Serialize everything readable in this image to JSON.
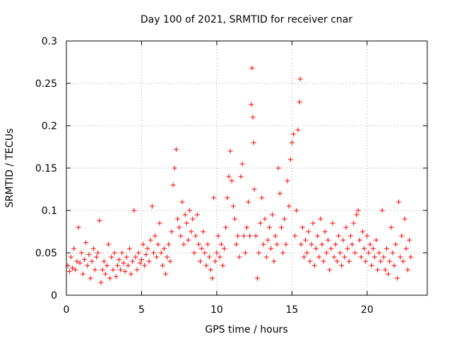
{
  "chart_data": {
    "type": "scatter",
    "title": "Day 100 of 2021, SRMTID for receiver cnar",
    "xlabel": "GPS time / hours",
    "ylabel": "SRMTID / TECUs",
    "xlim": [
      0,
      24
    ],
    "ylim": [
      0,
      0.3
    ],
    "xticks": [
      0,
      5,
      10,
      15,
      20
    ],
    "xtick_labels": [
      "0",
      "5",
      "10",
      "15",
      "20"
    ],
    "yticks": [
      0,
      0.05,
      0.1,
      0.15,
      0.2,
      0.25,
      0.3
    ],
    "ytick_labels": [
      "0",
      "0.05",
      "0.1",
      "0.15",
      "0.2",
      "0.25",
      "0.3"
    ],
    "grid": true,
    "marker": "plus",
    "marker_color": "#ff0000",
    "series": [
      {
        "name": "SRMTID",
        "points": [
          [
            0.1,
            0.035
          ],
          [
            0.2,
            0.028
          ],
          [
            0.3,
            0.045
          ],
          [
            0.4,
            0.032
          ],
          [
            0.5,
            0.055
          ],
          [
            0.6,
            0.03
          ],
          [
            0.7,
            0.04
          ],
          [
            0.8,
            0.08
          ],
          [
            0.9,
            0.038
          ],
          [
            1.0,
            0.05
          ],
          [
            1.1,
            0.025
          ],
          [
            1.2,
            0.042
          ],
          [
            1.3,
            0.062
          ],
          [
            1.4,
            0.035
          ],
          [
            1.5,
            0.048
          ],
          [
            1.6,
            0.02
          ],
          [
            1.7,
            0.04
          ],
          [
            1.8,
            0.055
          ],
          [
            1.9,
            0.03
          ],
          [
            2.0,
            0.045
          ],
          [
            2.1,
            0.05
          ],
          [
            2.2,
            0.088
          ],
          [
            2.3,
            0.015
          ],
          [
            2.4,
            0.03
          ],
          [
            2.5,
            0.04
          ],
          [
            2.6,
            0.025
          ],
          [
            2.7,
            0.035
          ],
          [
            2.8,
            0.06
          ],
          [
            2.9,
            0.02
          ],
          [
            3.0,
            0.045
          ],
          [
            3.1,
            0.03
          ],
          [
            3.2,
            0.05
          ],
          [
            3.3,
            0.022
          ],
          [
            3.4,
            0.035
          ],
          [
            3.5,
            0.042
          ],
          [
            3.6,
            0.03
          ],
          [
            3.7,
            0.05
          ],
          [
            3.8,
            0.038
          ],
          [
            3.9,
            0.028
          ],
          [
            4.0,
            0.045
          ],
          [
            4.1,
            0.035
          ],
          [
            4.2,
            0.055
          ],
          [
            4.3,
            0.025
          ],
          [
            4.4,
            0.04
          ],
          [
            4.5,
            0.1
          ],
          [
            4.6,
            0.045
          ],
          [
            4.7,
            0.03
          ],
          [
            4.8,
            0.05
          ],
          [
            4.9,
            0.038
          ],
          [
            5.0,
            0.042
          ],
          [
            5.1,
            0.06
          ],
          [
            5.2,
            0.035
          ],
          [
            5.3,
            0.048
          ],
          [
            5.4,
            0.055
          ],
          [
            5.5,
            0.04
          ],
          [
            5.6,
            0.065
          ],
          [
            5.7,
            0.105
          ],
          [
            5.8,
            0.05
          ],
          [
            5.9,
            0.07
          ],
          [
            6.0,
            0.045
          ],
          [
            6.1,
            0.06
          ],
          [
            6.2,
            0.085
          ],
          [
            6.3,
            0.05
          ],
          [
            6.4,
            0.035
          ],
          [
            6.5,
            0.055
          ],
          [
            6.6,
            0.025
          ],
          [
            6.7,
            0.045
          ],
          [
            6.8,
            0.06
          ],
          [
            6.9,
            0.04
          ],
          [
            7.0,
            0.075
          ],
          [
            7.1,
            0.13
          ],
          [
            7.2,
            0.15
          ],
          [
            7.3,
            0.172
          ],
          [
            7.4,
            0.09
          ],
          [
            7.5,
            0.08
          ],
          [
            7.6,
            0.07
          ],
          [
            7.7,
            0.11
          ],
          [
            7.8,
            0.06
          ],
          [
            7.9,
            0.095
          ],
          [
            8.0,
            0.085
          ],
          [
            8.1,
            0.065
          ],
          [
            8.2,
            0.1
          ],
          [
            8.3,
            0.075
          ],
          [
            8.4,
            0.09
          ],
          [
            8.5,
            0.05
          ],
          [
            8.6,
            0.07
          ],
          [
            8.7,
            0.095
          ],
          [
            8.8,
            0.06
          ],
          [
            8.9,
            0.04
          ],
          [
            9.0,
            0.055
          ],
          [
            9.1,
            0.075
          ],
          [
            9.2,
            0.05
          ],
          [
            9.3,
            0.035
          ],
          [
            9.4,
            0.06
          ],
          [
            9.5,
            0.045
          ],
          [
            9.6,
            0.03
          ],
          [
            9.7,
            0.02
          ],
          [
            9.8,
            0.115
          ],
          [
            9.9,
            0.04
          ],
          [
            10.0,
            0.05
          ],
          [
            10.1,
            0.07
          ],
          [
            10.2,
            0.045
          ],
          [
            10.3,
            0.06
          ],
          [
            10.4,
            0.035
          ],
          [
            10.5,
            0.055
          ],
          [
            10.6,
            0.08
          ],
          [
            10.7,
            0.115
          ],
          [
            10.8,
            0.14
          ],
          [
            10.9,
            0.17
          ],
          [
            11.0,
            0.135
          ],
          [
            11.1,
            0.105
          ],
          [
            11.2,
            0.09
          ],
          [
            11.3,
            0.06
          ],
          [
            11.4,
            0.07
          ],
          [
            11.5,
            0.045
          ],
          [
            11.6,
            0.14
          ],
          [
            11.7,
            0.155
          ],
          [
            11.8,
            0.07
          ],
          [
            11.9,
            0.05
          ],
          [
            12.0,
            0.08
          ],
          [
            12.1,
            0.11
          ],
          [
            12.2,
            0.07
          ],
          [
            12.3,
            0.225
          ],
          [
            12.35,
            0.268
          ],
          [
            12.4,
            0.21
          ],
          [
            12.45,
            0.18
          ],
          [
            12.5,
            0.125
          ],
          [
            12.6,
            0.07
          ],
          [
            12.7,
            0.02
          ],
          [
            12.8,
            0.05
          ],
          [
            12.9,
            0.085
          ],
          [
            13.0,
            0.115
          ],
          [
            13.1,
            0.06
          ],
          [
            13.2,
            0.09
          ],
          [
            13.3,
            0.045
          ],
          [
            13.4,
            0.065
          ],
          [
            13.5,
            0.08
          ],
          [
            13.6,
            0.055
          ],
          [
            13.7,
            0.095
          ],
          [
            13.8,
            0.04
          ],
          [
            13.9,
            0.07
          ],
          [
            14.0,
            0.06
          ],
          [
            14.1,
            0.15
          ],
          [
            14.2,
            0.12
          ],
          [
            14.3,
            0.08
          ],
          [
            14.4,
            0.05
          ],
          [
            14.5,
            0.09
          ],
          [
            14.6,
            0.06
          ],
          [
            14.7,
            0.135
          ],
          [
            14.8,
            0.105
          ],
          [
            14.9,
            0.16
          ],
          [
            15.0,
            0.18
          ],
          [
            15.1,
            0.19
          ],
          [
            15.2,
            0.07
          ],
          [
            15.3,
            0.1
          ],
          [
            15.4,
            0.195
          ],
          [
            15.5,
            0.228
          ],
          [
            15.55,
            0.255
          ],
          [
            15.6,
            0.06
          ],
          [
            15.7,
            0.08
          ],
          [
            15.8,
            0.045
          ],
          [
            15.9,
            0.065
          ],
          [
            16.0,
            0.05
          ],
          [
            16.1,
            0.075
          ],
          [
            16.2,
            0.04
          ],
          [
            16.3,
            0.06
          ],
          [
            16.4,
            0.085
          ],
          [
            16.5,
            0.035
          ],
          [
            16.6,
            0.055
          ],
          [
            16.7,
            0.07
          ],
          [
            16.8,
            0.045
          ],
          [
            16.9,
            0.09
          ],
          [
            17.0,
            0.06
          ],
          [
            17.1,
            0.04
          ],
          [
            17.2,
            0.075
          ],
          [
            17.3,
            0.05
          ],
          [
            17.4,
            0.065
          ],
          [
            17.5,
            0.03
          ],
          [
            17.6,
            0.055
          ],
          [
            17.7,
            0.085
          ],
          [
            17.8,
            0.045
          ],
          [
            17.9,
            0.06
          ],
          [
            18.0,
            0.04
          ],
          [
            18.1,
            0.07
          ],
          [
            18.2,
            0.05
          ],
          [
            18.3,
            0.035
          ],
          [
            18.4,
            0.065
          ],
          [
            18.5,
            0.045
          ],
          [
            18.6,
            0.08
          ],
          [
            18.7,
            0.055
          ],
          [
            18.8,
            0.04
          ],
          [
            18.9,
            0.07
          ],
          [
            19.0,
            0.06
          ],
          [
            19.1,
            0.085
          ],
          [
            19.2,
            0.05
          ],
          [
            19.3,
            0.095
          ],
          [
            19.4,
            0.1
          ],
          [
            19.5,
            0.065
          ],
          [
            19.6,
            0.045
          ],
          [
            19.7,
            0.075
          ],
          [
            19.8,
            0.055
          ],
          [
            19.9,
            0.04
          ],
          [
            20.0,
            0.07
          ],
          [
            20.1,
            0.05
          ],
          [
            20.2,
            0.06
          ],
          [
            20.3,
            0.035
          ],
          [
            20.4,
            0.055
          ],
          [
            20.5,
            0.045
          ],
          [
            20.6,
            0.065
          ],
          [
            20.7,
            0.03
          ],
          [
            20.8,
            0.05
          ],
          [
            20.9,
            0.04
          ],
          [
            21.0,
            0.1
          ],
          [
            21.1,
            0.045
          ],
          [
            21.2,
            0.03
          ],
          [
            21.3,
            0.055
          ],
          [
            21.4,
            0.025
          ],
          [
            21.5,
            0.04
          ],
          [
            21.6,
            0.08
          ],
          [
            21.7,
            0.05
          ],
          [
            21.8,
            0.035
          ],
          [
            21.9,
            0.06
          ],
          [
            22.0,
            0.02
          ],
          [
            22.1,
            0.11
          ],
          [
            22.2,
            0.045
          ],
          [
            22.3,
            0.07
          ],
          [
            22.4,
            0.04
          ],
          [
            22.5,
            0.09
          ],
          [
            22.6,
            0.055
          ],
          [
            22.7,
            0.03
          ],
          [
            22.8,
            0.065
          ],
          [
            22.9,
            0.045
          ]
        ]
      }
    ]
  }
}
